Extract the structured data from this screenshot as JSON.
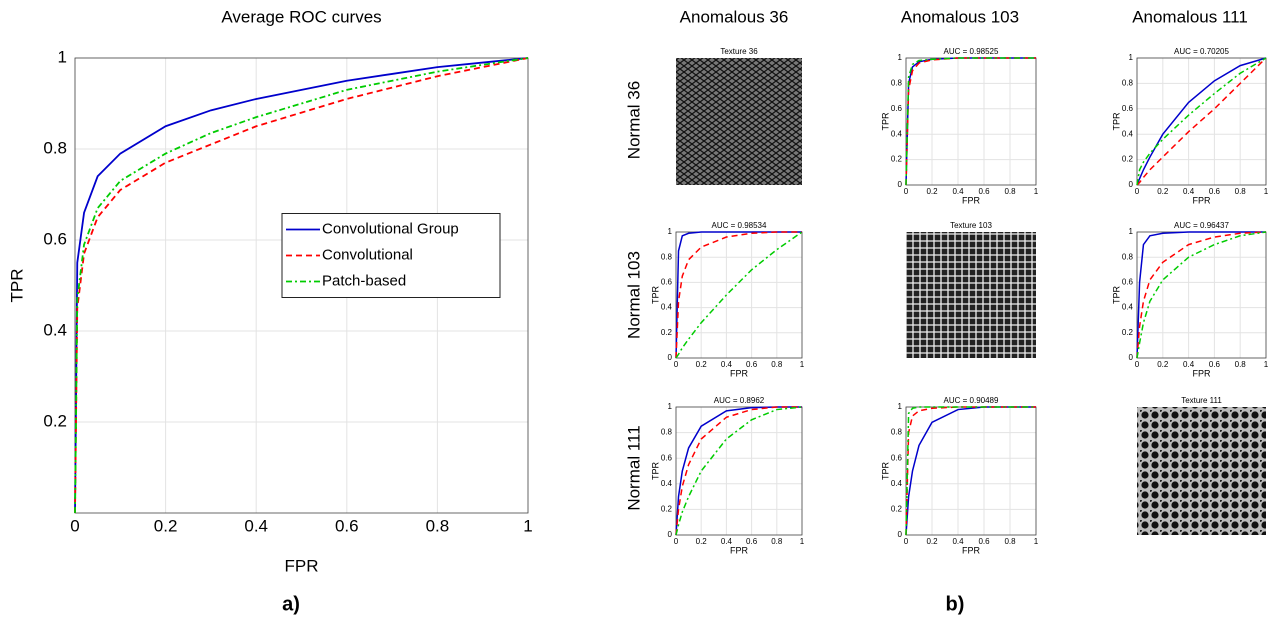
{
  "figure": {
    "panel_labels": [
      "a)",
      "b)"
    ],
    "columns": [
      "Anomalous 36",
      "Anomalous 103",
      "Anomalous 111"
    ],
    "rows": [
      "Normal 36",
      "Normal 103",
      "Normal 111"
    ],
    "textures": [
      "Texture 36",
      "Texture 103",
      "Texture 111"
    ]
  },
  "chart_data": [
    {
      "type": "line",
      "title": "Average ROC curves",
      "x_label": "FPR",
      "y_label": "TPR",
      "xlim": [
        0,
        1
      ],
      "ylim": [
        0,
        1
      ],
      "xticks": [
        0,
        0.2,
        0.4,
        0.6,
        0.8,
        1
      ],
      "yticks": [
        0.2,
        0.4,
        0.6,
        0.8,
        1
      ],
      "grid": true,
      "legend": "center right",
      "x": [
        0,
        0.005,
        0.02,
        0.05,
        0.1,
        0.2,
        0.3,
        0.4,
        0.5,
        0.6,
        0.7,
        0.8,
        0.9,
        1
      ],
      "series": [
        {
          "name": "Convolutional Group",
          "color": "#0000cc",
          "style": "solid",
          "values": [
            0,
            0.55,
            0.66,
            0.74,
            0.79,
            0.85,
            0.885,
            0.91,
            0.93,
            0.95,
            0.965,
            0.98,
            0.99,
            1
          ]
        },
        {
          "name": "Convolutional",
          "color": "#ff0000",
          "style": "dashed",
          "values": [
            0,
            0.45,
            0.57,
            0.65,
            0.71,
            0.77,
            0.81,
            0.85,
            0.88,
            0.91,
            0.935,
            0.96,
            0.98,
            1
          ]
        },
        {
          "name": "Patch-based",
          "color": "#00cc00",
          "style": "dashdot",
          "values": [
            0,
            0.47,
            0.59,
            0.67,
            0.73,
            0.79,
            0.835,
            0.87,
            0.9,
            0.93,
            0.95,
            0.97,
            0.985,
            1
          ]
        }
      ]
    },
    {
      "type": "line",
      "title": "AUC = 0.98525",
      "x_label": "FPR",
      "y_label": "TPR",
      "xlim": [
        0,
        1
      ],
      "ylim": [
        0,
        1
      ],
      "xticks": [
        0,
        0.2,
        0.4,
        0.6,
        0.8,
        1
      ],
      "yticks": [
        0,
        0.2,
        0.4,
        0.6,
        0.8,
        1
      ],
      "grid": true,
      "x": [
        0,
        0.02,
        0.05,
        0.1,
        0.2,
        0.4,
        0.6,
        0.8,
        1
      ],
      "series": [
        {
          "color": "#0000cc",
          "style": "solid",
          "values": [
            0,
            0.8,
            0.93,
            0.97,
            0.99,
            1,
            1,
            1,
            1
          ]
        },
        {
          "color": "#ff0000",
          "style": "dashed",
          "values": [
            0,
            0.75,
            0.9,
            0.96,
            0.985,
            1,
            1,
            1,
            1
          ]
        },
        {
          "color": "#00cc00",
          "style": "dashdot",
          "values": [
            0,
            0.85,
            0.95,
            0.98,
            0.99,
            1,
            1,
            1,
            1
          ]
        }
      ]
    },
    {
      "type": "line",
      "title": "AUC = 0.70205",
      "x_label": "FPR",
      "y_label": "TPR",
      "xlim": [
        0,
        1
      ],
      "ylim": [
        0,
        1
      ],
      "xticks": [
        0,
        0.2,
        0.4,
        0.6,
        0.8,
        1
      ],
      "yticks": [
        0,
        0.2,
        0.4,
        0.6,
        0.8,
        1
      ],
      "grid": true,
      "x": [
        0,
        0.02,
        0.05,
        0.1,
        0.2,
        0.4,
        0.6,
        0.8,
        1
      ],
      "series": [
        {
          "color": "#0000cc",
          "style": "solid",
          "values": [
            0,
            0.05,
            0.12,
            0.22,
            0.4,
            0.65,
            0.82,
            0.94,
            1
          ]
        },
        {
          "color": "#ff0000",
          "style": "dashed",
          "values": [
            0,
            0.02,
            0.06,
            0.12,
            0.22,
            0.42,
            0.6,
            0.8,
            1
          ]
        },
        {
          "color": "#00cc00",
          "style": "dashdot",
          "values": [
            0,
            0.12,
            0.18,
            0.25,
            0.36,
            0.55,
            0.72,
            0.88,
            1
          ]
        }
      ]
    },
    {
      "type": "line",
      "title": "AUC = 0.98534",
      "x_label": "FPR",
      "y_label": "TPR",
      "xlim": [
        0,
        1
      ],
      "ylim": [
        0,
        1
      ],
      "xticks": [
        0,
        0.2,
        0.4,
        0.6,
        0.8,
        1
      ],
      "yticks": [
        0,
        0.2,
        0.4,
        0.6,
        0.8,
        1
      ],
      "grid": true,
      "x": [
        0,
        0.02,
        0.05,
        0.1,
        0.2,
        0.4,
        0.6,
        0.8,
        1
      ],
      "series": [
        {
          "color": "#0000cc",
          "style": "solid",
          "values": [
            0,
            0.85,
            0.97,
            0.99,
            1,
            1,
            1,
            1,
            1
          ]
        },
        {
          "color": "#ff0000",
          "style": "dashed",
          "values": [
            0,
            0.45,
            0.65,
            0.78,
            0.88,
            0.96,
            0.99,
            1,
            1
          ]
        },
        {
          "color": "#00cc00",
          "style": "dashdot",
          "values": [
            0,
            0.03,
            0.08,
            0.15,
            0.28,
            0.5,
            0.7,
            0.86,
            1
          ]
        }
      ]
    },
    {
      "type": "line",
      "title": "AUC = 0.96437",
      "x_label": "FPR",
      "y_label": "TPR",
      "xlim": [
        0,
        1
      ],
      "ylim": [
        0,
        1
      ],
      "xticks": [
        0,
        0.2,
        0.4,
        0.6,
        0.8,
        1
      ],
      "yticks": [
        0,
        0.2,
        0.4,
        0.6,
        0.8,
        1
      ],
      "grid": true,
      "x": [
        0,
        0.02,
        0.05,
        0.1,
        0.2,
        0.4,
        0.6,
        0.8,
        1
      ],
      "series": [
        {
          "color": "#0000cc",
          "style": "solid",
          "values": [
            0,
            0.6,
            0.9,
            0.97,
            0.99,
            1,
            1,
            1,
            1
          ]
        },
        {
          "color": "#ff0000",
          "style": "dashed",
          "values": [
            0,
            0.25,
            0.45,
            0.62,
            0.76,
            0.9,
            0.96,
            0.99,
            1
          ]
        },
        {
          "color": "#00cc00",
          "style": "dashdot",
          "values": [
            0,
            0.12,
            0.28,
            0.45,
            0.62,
            0.8,
            0.9,
            0.97,
            1
          ]
        }
      ]
    },
    {
      "type": "line",
      "title": "AUC = 0.8962",
      "x_label": "FPR",
      "y_label": "TPR",
      "xlim": [
        0,
        1
      ],
      "ylim": [
        0,
        1
      ],
      "xticks": [
        0,
        0.2,
        0.4,
        0.6,
        0.8,
        1
      ],
      "yticks": [
        0,
        0.2,
        0.4,
        0.6,
        0.8,
        1
      ],
      "grid": true,
      "x": [
        0,
        0.02,
        0.05,
        0.1,
        0.2,
        0.4,
        0.6,
        0.8,
        1
      ],
      "series": [
        {
          "color": "#0000cc",
          "style": "solid",
          "values": [
            0,
            0.3,
            0.5,
            0.68,
            0.85,
            0.97,
            0.995,
            1,
            1
          ]
        },
        {
          "color": "#ff0000",
          "style": "dashed",
          "values": [
            0,
            0.2,
            0.38,
            0.55,
            0.75,
            0.92,
            0.98,
            1,
            1
          ]
        },
        {
          "color": "#00cc00",
          "style": "dashdot",
          "values": [
            0,
            0.08,
            0.18,
            0.3,
            0.5,
            0.75,
            0.9,
            0.98,
            1
          ]
        }
      ]
    },
    {
      "type": "line",
      "title": "AUC = 0.90489",
      "x_label": "FPR",
      "y_label": "TPR",
      "xlim": [
        0,
        1
      ],
      "ylim": [
        0,
        1
      ],
      "xticks": [
        0,
        0.2,
        0.4,
        0.6,
        0.8,
        1
      ],
      "yticks": [
        0,
        0.2,
        0.4,
        0.6,
        0.8,
        1
      ],
      "grid": true,
      "x": [
        0,
        0.02,
        0.05,
        0.1,
        0.2,
        0.4,
        0.6,
        0.8,
        1
      ],
      "series": [
        {
          "color": "#0000cc",
          "style": "solid",
          "values": [
            0,
            0.3,
            0.5,
            0.7,
            0.88,
            0.98,
            1,
            1,
            1
          ]
        },
        {
          "color": "#ff0000",
          "style": "dashed",
          "values": [
            0,
            0.8,
            0.93,
            0.97,
            0.99,
            1,
            1,
            1,
            1
          ]
        },
        {
          "color": "#00cc00",
          "style": "dashdot",
          "values": [
            0,
            0.95,
            0.99,
            1,
            1,
            1,
            1,
            1,
            1
          ]
        }
      ]
    }
  ]
}
